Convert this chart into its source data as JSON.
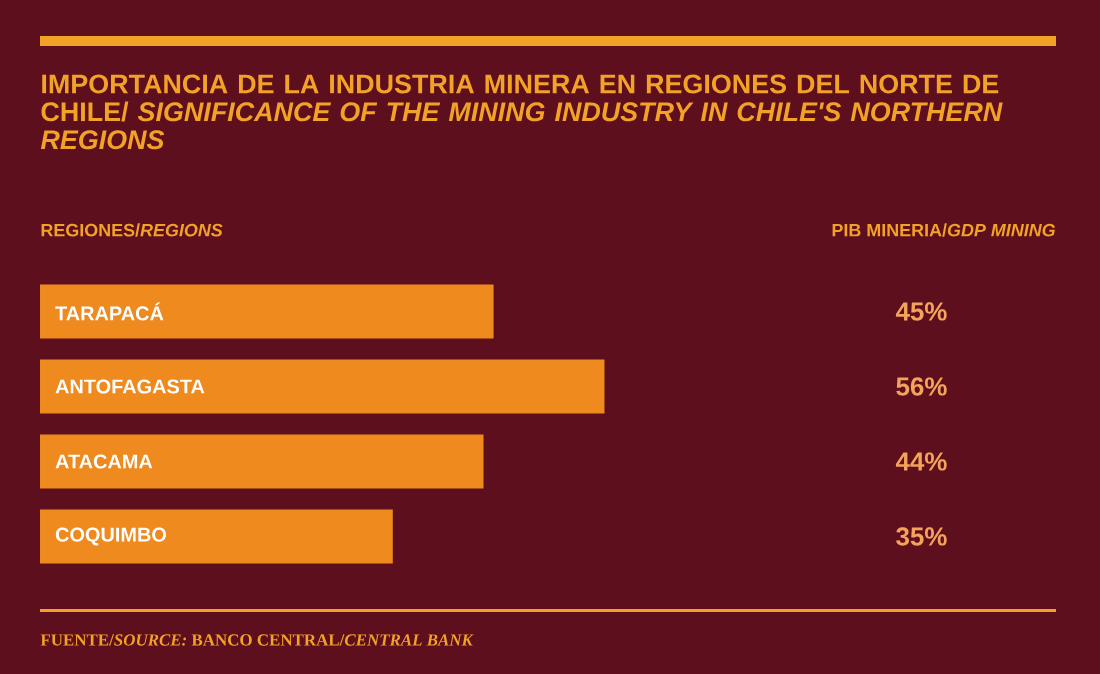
{
  "chart_data": {
    "type": "bar",
    "orientation": "horizontal",
    "title": "IMPORTANCIA DE LA INDUSTRIA MINERA EN REGIONES DEL NORTE DE CHILE/ *SIGNIFICANCE OF THE MINING INDUSTRY IN CHILE'S NORTHERN REGIONS*",
    "categories": [
      "TARAPACÁ",
      "ANTOFAGASTA",
      "ATACAMA",
      "COQUIMBO"
    ],
    "values": [
      45,
      56,
      44,
      35
    ],
    "value_labels": [
      "45%",
      "56%",
      "44%",
      "35%"
    ],
    "color": "#ee8a1e",
    "annotations": [
      "REGIONES/*REGIONS*",
      "PIB MINERIA/*GDP MINING*",
      "FUENTE/*SOURCE:* BANCO CENTRAL/*CENTRAL BANK*"
    ]
  }
}
